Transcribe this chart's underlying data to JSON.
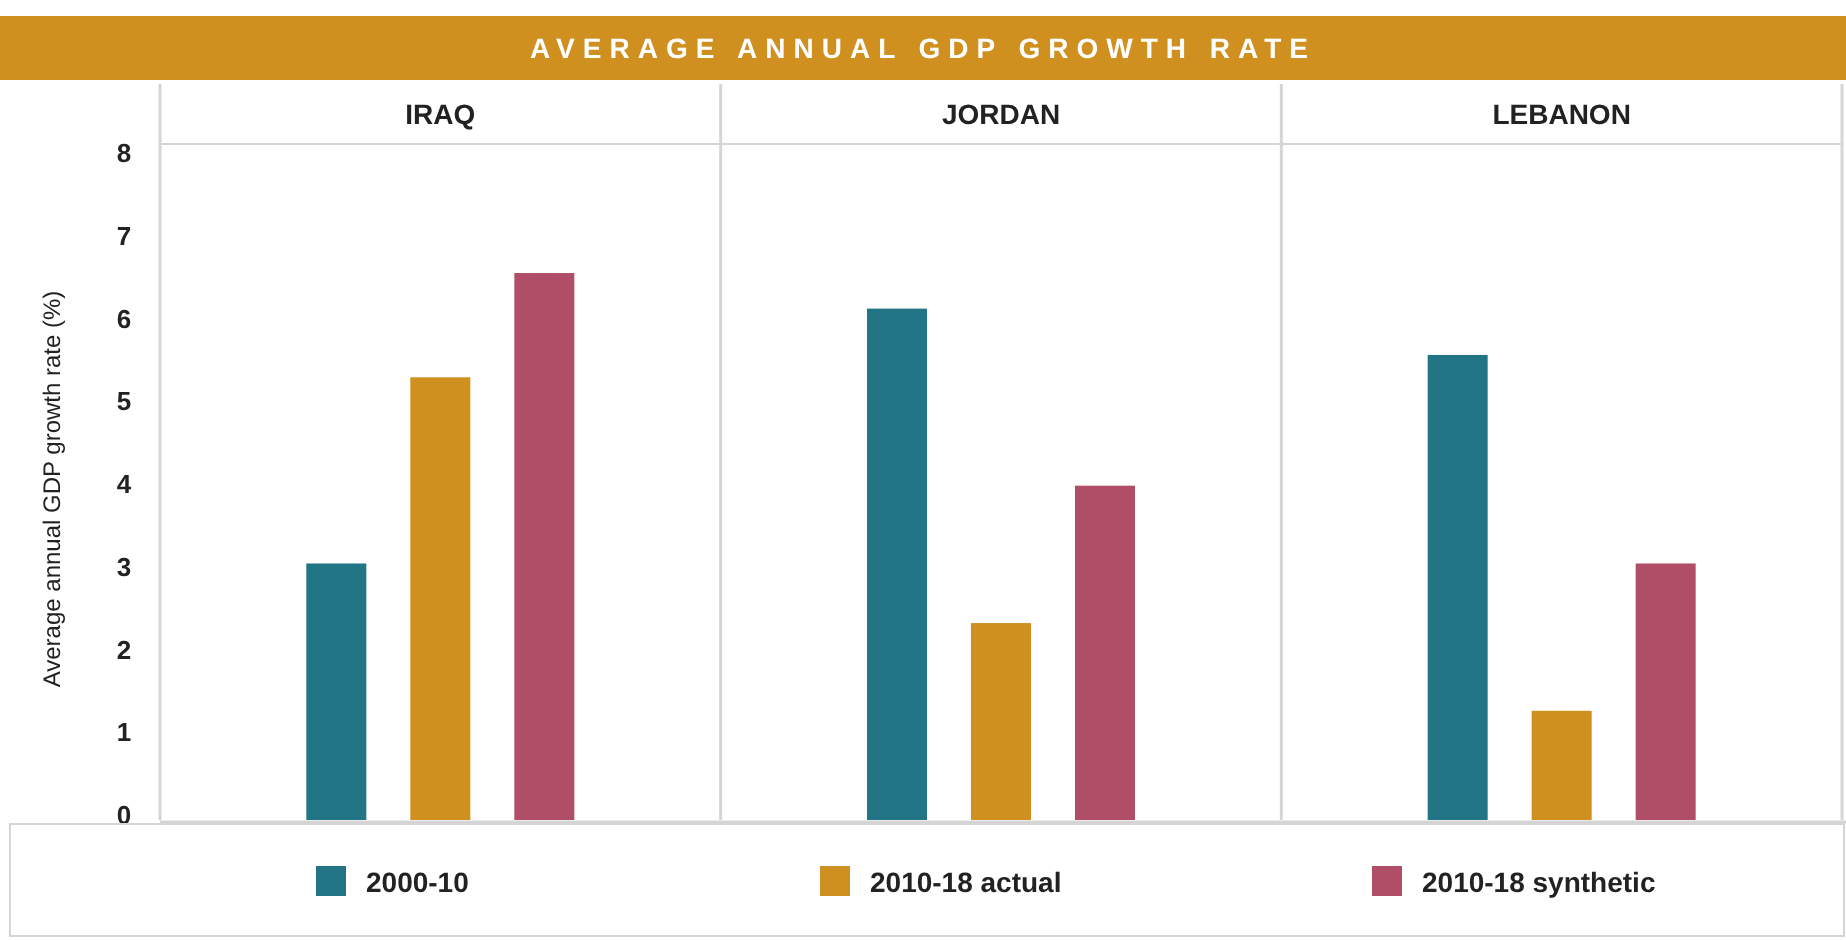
{
  "chart_data": {
    "type": "bar",
    "title": "AVERAGE ANNUAL GDP GROWTH RATE",
    "ylabel": "Average annual GDP growth rate (%)",
    "categories": [
      "IRAQ",
      "JORDAN",
      "LEBANON"
    ],
    "series": [
      {
        "name": "2000-10",
        "color": "#217584",
        "values": [
          3.1,
          6.18,
          5.62
        ]
      },
      {
        "name": "2010-18 actual",
        "color": "#d09020",
        "values": [
          5.35,
          2.38,
          1.32
        ]
      },
      {
        "name": "2010-18 synthetic",
        "color": "#b04e68",
        "values": [
          6.61,
          4.04,
          3.1
        ]
      }
    ],
    "ylim": [
      0,
      8
    ],
    "yticks": [
      0,
      1,
      2,
      3,
      4,
      5,
      6,
      7,
      8
    ],
    "legend": "bottom"
  }
}
